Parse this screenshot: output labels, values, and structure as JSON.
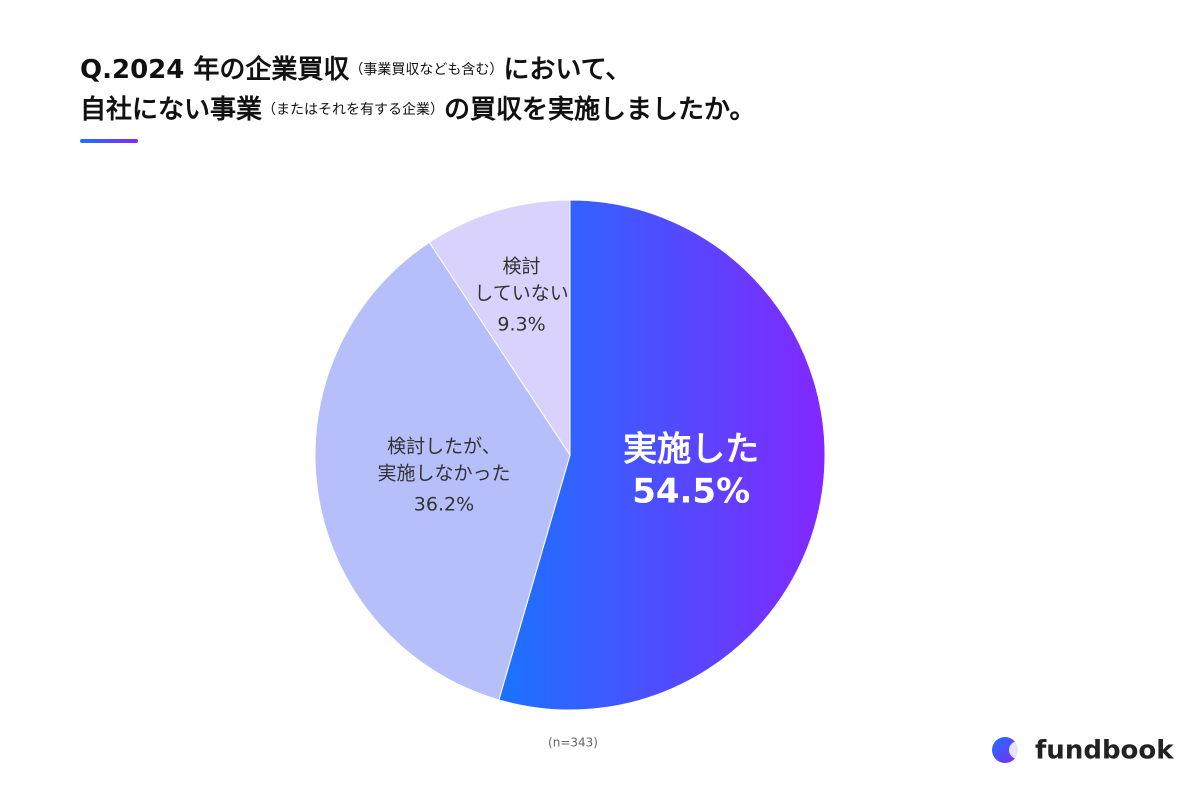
{
  "chart_data": {
    "type": "pie",
    "title_lines": [
      [
        "Q.2024 年の企業買収",
        "（事業買収なども含む）",
        "において、"
      ],
      [
        "自社にない事業",
        "（またはそれを有する企業）",
        "の買収を実施しましたか。"
      ]
    ],
    "categories": [
      [
        "実施した"
      ],
      [
        "検討したが、",
        "実施しなかった"
      ],
      [
        "検討",
        "していない"
      ]
    ],
    "values": [
      54.5,
      36.2,
      9.3
    ],
    "value_labels": [
      "54.5%",
      "36.2%",
      "9.3%"
    ],
    "colors": [
      [
        "#1a73ff",
        "#8327ff"
      ],
      "#b7bffb",
      "#d9d2fc"
    ],
    "note": "(n=343)"
  },
  "logo": "fundbook"
}
